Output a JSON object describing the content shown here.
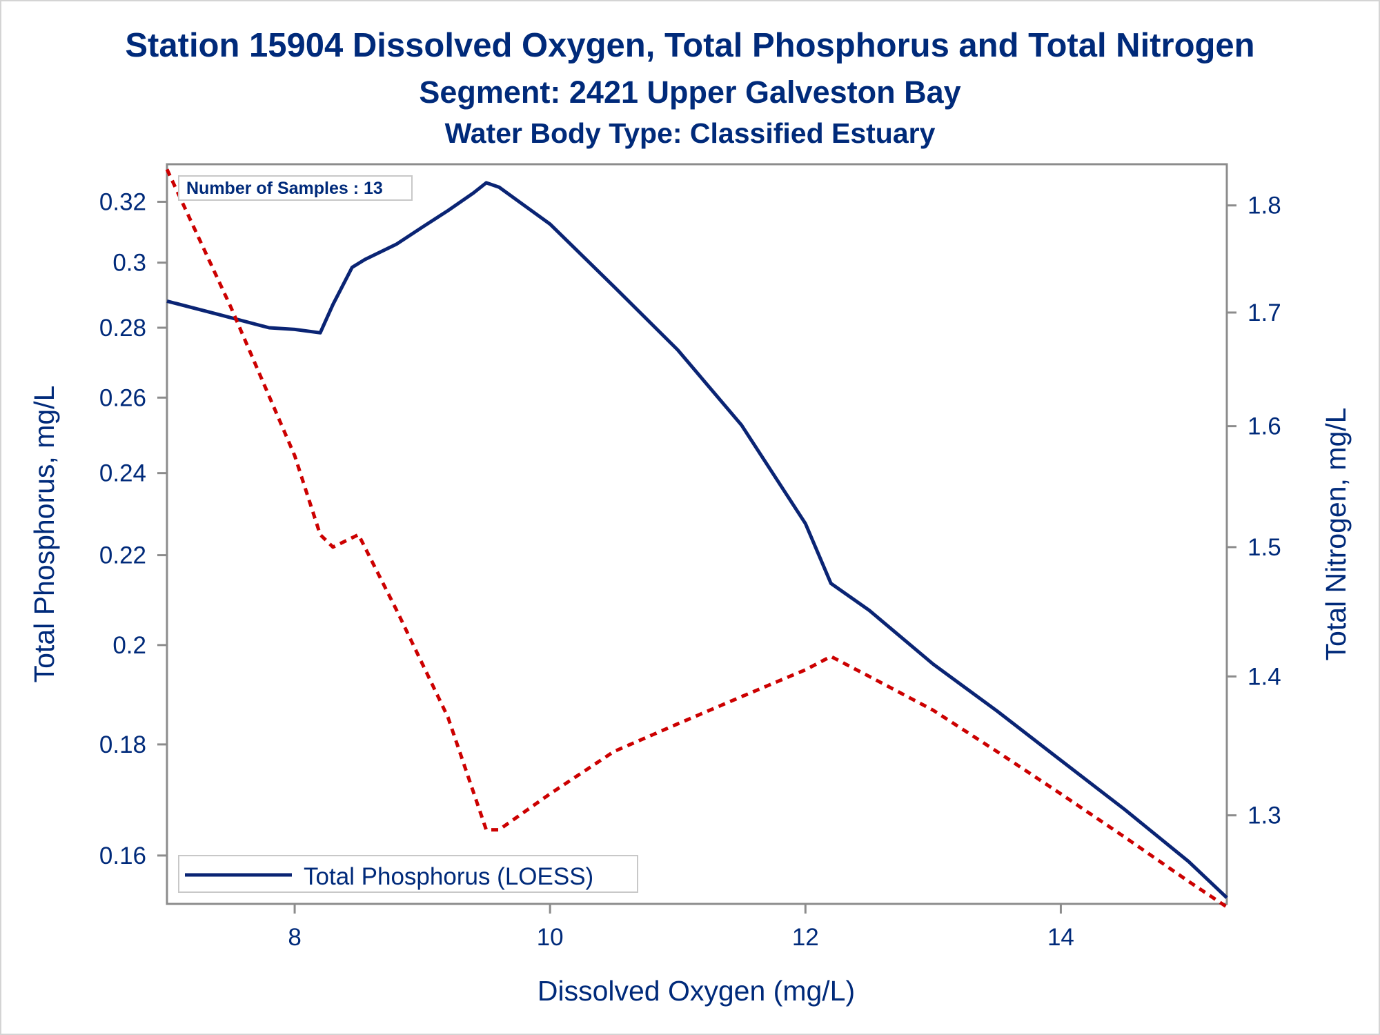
{
  "titles": {
    "title": "Station 15904  Dissolved Oxygen, Total Phosphorus and Total Nitrogen",
    "subtitle": "Segment: 2421  Upper Galveston Bay",
    "subtitle2": "Water Body Type: Classified Estuary"
  },
  "inset": {
    "samples_label": "Number of Samples : 13"
  },
  "colors": {
    "text": "#002a7a",
    "phosphorus": "#0a2474",
    "nitrogen": "#cc0000",
    "axis": "#8c8c8c"
  },
  "chart_data": {
    "type": "line",
    "title": "Station 15904  Dissolved Oxygen, Total Phosphorus and Total Nitrogen",
    "xlabel": "Dissolved Oxygen (mg/L)",
    "ylabel": "Total Phosphorus, mg/L",
    "y2label": "Total Nitrogen, mg/L",
    "xlim": [
      7.0,
      15.3
    ],
    "ylim": [
      0.152,
      0.333
    ],
    "y2lim": [
      1.24,
      1.84
    ],
    "y_scale": "log",
    "x_ticks": [
      8,
      10,
      12,
      14
    ],
    "y_ticks": [
      0.16,
      0.18,
      0.2,
      0.22,
      0.24,
      0.26,
      0.28,
      0.3,
      0.32
    ],
    "y2_ticks": [
      1.3,
      1.4,
      1.5,
      1.6,
      1.7,
      1.8
    ],
    "legend": {
      "position": "bottom-left",
      "entries": [
        "Total Phosphorus (LOESS)"
      ]
    },
    "grid": false,
    "series": [
      {
        "name": "Total Phosphorus (LOESS)",
        "axis": "left",
        "style": "solid",
        "x": [
          7.0,
          7.4,
          7.8,
          8.0,
          8.2,
          8.3,
          8.45,
          8.55,
          8.8,
          9.0,
          9.2,
          9.4,
          9.5,
          9.6,
          10.0,
          10.5,
          11.0,
          11.5,
          12.0,
          12.2,
          12.5,
          13.0,
          13.5,
          14.0,
          14.5,
          15.0,
          15.3
        ],
        "values": [
          0.288,
          0.284,
          0.28,
          0.2795,
          0.2785,
          0.287,
          0.2985,
          0.301,
          0.306,
          0.3115,
          0.317,
          0.323,
          0.3265,
          0.325,
          0.3125,
          0.2925,
          0.2735,
          0.2525,
          0.2275,
          0.2135,
          0.2075,
          0.196,
          0.1865,
          0.177,
          0.168,
          0.159,
          0.153
        ]
      },
      {
        "name": "Total Nitrogen",
        "axis": "right",
        "style": "dotted",
        "x": [
          7.0,
          7.5,
          8.0,
          8.2,
          8.3,
          8.5,
          8.8,
          9.2,
          9.5,
          9.6,
          10.0,
          10.5,
          11.0,
          11.5,
          12.0,
          12.2,
          12.5,
          13.0,
          13.5,
          14.0,
          14.5,
          15.0,
          15.3
        ],
        "values": [
          1.835,
          1.705,
          1.575,
          1.51,
          1.5,
          1.51,
          1.45,
          1.37,
          1.29,
          1.29,
          1.315,
          1.345,
          1.365,
          1.385,
          1.405,
          1.415,
          1.4,
          1.375,
          1.345,
          1.315,
          1.285,
          1.255,
          1.238
        ]
      }
    ]
  },
  "labels": {
    "xlabel": "Dissolved Oxygen (mg/L)",
    "ylabel": "Total Phosphorus, mg/L",
    "y2label": "Total Nitrogen, mg/L",
    "legend_entry": "Total Phosphorus (LOESS)"
  }
}
